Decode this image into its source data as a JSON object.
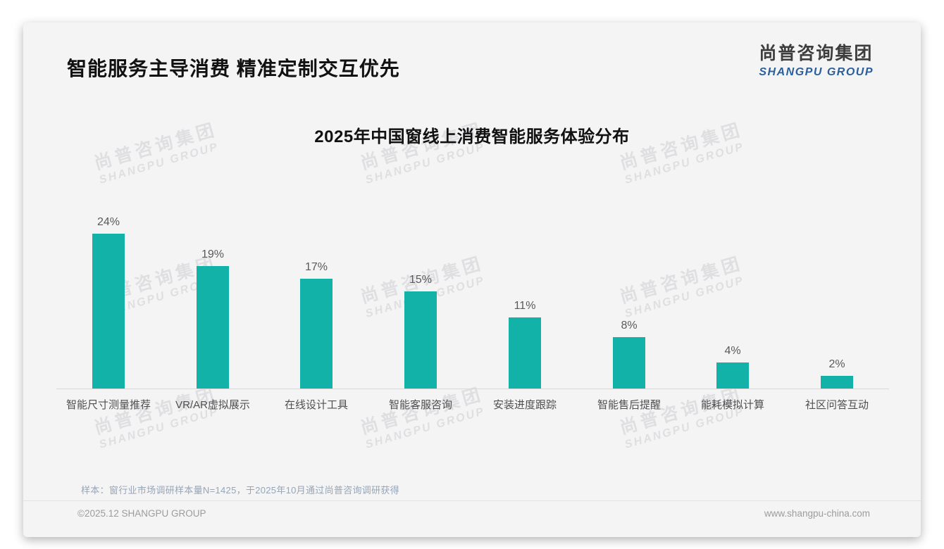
{
  "page": {
    "background": "#ffffff",
    "card_background": "#f4f4f5"
  },
  "header": {
    "title": "智能服务主导消费 精准定制交互优先",
    "logo": {
      "cn": "尚普咨询集团",
      "en": "SHANGPU GROUP",
      "en_color": "#2b5f9b"
    }
  },
  "chart_data": {
    "type": "bar",
    "title": "2025年中国窗线上消费智能服务体验分布",
    "categories": [
      "智能尺寸测量推荐",
      "VR/AR虚拟展示",
      "在线设计工具",
      "智能客服咨询",
      "安装进度跟踪",
      "智能售后提醒",
      "能耗模拟计算",
      "社区问答互动"
    ],
    "values": [
      24,
      19,
      17,
      15,
      11,
      8,
      4,
      2
    ],
    "unit": "%",
    "bar_color": "#12b2a8",
    "value_label_color": "#595959",
    "ylim": [
      0,
      26
    ],
    "grid": false,
    "legend": "none",
    "value_labels_position": "above bars"
  },
  "watermark": {
    "cn": "尚普咨询集团",
    "en": "SHANGPU GROUP"
  },
  "footnote": "样本：窗行业市场调研样本量N=1425，于2025年10月通过尚普咨询调研获得",
  "footer": {
    "left": "©2025.12 SHANGPU GROUP",
    "right": "www.shangpu-china.com"
  }
}
